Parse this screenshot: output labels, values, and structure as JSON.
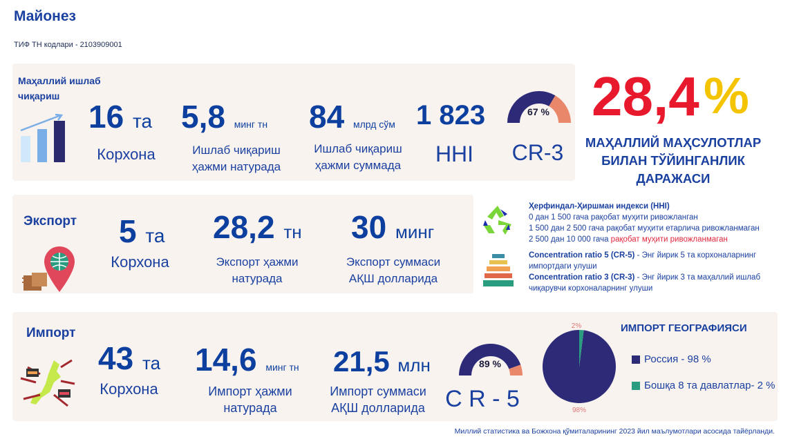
{
  "title": "Майонез",
  "subtitle": "ТИФ ТН кодлари - 2103909001",
  "local": {
    "header": "Маҳаллий ишлаб чиқариш",
    "companies": {
      "value": "16",
      "unit": "та",
      "label": "Корхона"
    },
    "volume": {
      "value": "5,8",
      "unit": "минг тн",
      "label": "Ишлаб чиқариш ҳажми натурада"
    },
    "amount": {
      "value": "84",
      "unit": "млрд сўм",
      "label": "Ишлаб чиқариш ҳажми суммада"
    },
    "hhi": {
      "value": "1 823",
      "label": "HHI"
    },
    "cr3": {
      "percent": 67,
      "value_label": "67 %",
      "label": "CR-3"
    }
  },
  "saturation": {
    "value": "28,4",
    "percent_sign": "%",
    "label": "МАҲАЛЛИЙ МАҲСУЛОТЛАР БИЛАН ТЎЙИНГАНЛИК ДАРАЖАСИ"
  },
  "export": {
    "header": "Экспорт",
    "companies": {
      "value": "5",
      "unit": "та",
      "label": "Корхона"
    },
    "volume": {
      "value": "28,2",
      "unit": "тн",
      "label": "Экспорт ҳажми натурада"
    },
    "amount": {
      "value": "30",
      "unit": "минг",
      "label": "Экспорт суммаси АҚШ долларида"
    }
  },
  "notes": {
    "hhi_title": "Ҳерфиндал-Ҳиршман индекси (HHI)",
    "hhi_1": "0 дан 1 500 гача рақобат муҳити ривожланган",
    "hhi_2": "1 500 дан 2 500 гача рақобат муҳити етарлича ривожланмаган",
    "hhi_3a": "2 500 дан 10 000 гача ",
    "hhi_3b": "рақобат муҳити ривожланмаган",
    "cr5_title": "Concentration ratio 5 (CR-5)",
    "cr5_text": " - Энг йирик 5 та корхоналарнинг импортдаги улуши",
    "cr3_title": "Concentration ratio 3 (CR-3)",
    "cr3_text": " - Энг йирик 3 та маҳаллий ишлаб чиқарувчи корхоналарнинг улуши"
  },
  "import": {
    "header": "Импорт",
    "companies": {
      "value": "43",
      "unit": "та",
      "label": "Корхона"
    },
    "volume": {
      "value": "14,6",
      "unit": "минг тн",
      "label": "Импорт ҳажми натурада"
    },
    "amount": {
      "value": "21,5",
      "unit": "млн",
      "label": "Импорт суммаси АҚШ долларида"
    },
    "cr5": {
      "percent": 89,
      "value_label": "89 %",
      "label": "C R - 5"
    }
  },
  "colors": {
    "navy": "#2d2b78",
    "salmon": "#e9876b",
    "teal": "#2a9d80",
    "red": "#e8192c",
    "yellow": "#f5c400",
    "blue": "#0d3f9f"
  },
  "chart_data": {
    "type": "pie",
    "title": "ИМПОРТ ГЕОГРАФИЯСИ",
    "slices": [
      {
        "name": "Россия - 98 %",
        "value": 98,
        "label": "98%",
        "color": "#2d2b78"
      },
      {
        "name": "Бошқа 8 та давлатлар- 2 %",
        "value": 2,
        "label": "2%",
        "color": "#2a9d80"
      }
    ]
  },
  "footer": "Миллий статистика ва Божхона қўмиталарининг 2023 йил маълумотлари асосида тайёрланди."
}
